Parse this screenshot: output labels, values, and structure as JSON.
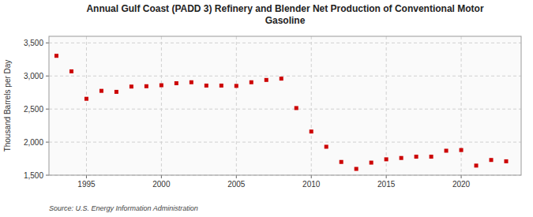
{
  "chart_data": {
    "type": "scatter",
    "title": "Annual Gulf Coast (PADD 3) Refinery and Blender Net Production of Conventional Motor\nGasoline",
    "y_label": "Thousand Barrels per Day",
    "annotations": [
      "Source: U.S. Energy Information Administration"
    ],
    "x": [
      1993,
      1994,
      1995,
      1996,
      1997,
      1998,
      1999,
      2000,
      2001,
      2002,
      2003,
      2004,
      2005,
      2006,
      2007,
      2008,
      2009,
      2010,
      2011,
      2012,
      2013,
      2014,
      2015,
      2016,
      2017,
      2018,
      2019,
      2020,
      2021,
      2022,
      2023
    ],
    "values": [
      3305,
      3070,
      2655,
      2775,
      2760,
      2840,
      2845,
      2860,
      2890,
      2905,
      2855,
      2855,
      2850,
      2905,
      2940,
      2960,
      2515,
      2160,
      1930,
      1700,
      1595,
      1690,
      1740,
      1760,
      1780,
      1780,
      1870,
      1880,
      1645,
      1730,
      1710
    ],
    "color": "#cc0000",
    "marker": "square",
    "xlim": [
      1992.5,
      2024
    ],
    "xticks": [
      1995,
      2000,
      2005,
      2010,
      2015,
      2020
    ],
    "ylim": [
      1500,
      3600
    ],
    "yticks": [
      {
        "value": 1500,
        "label": "1,500"
      },
      {
        "value": 2000,
        "label": "2,000"
      },
      {
        "value": 2500,
        "label": "2,500"
      },
      {
        "value": 3000,
        "label": "3,000"
      },
      {
        "value": 3500,
        "label": "3,500"
      }
    ],
    "grid": true
  }
}
